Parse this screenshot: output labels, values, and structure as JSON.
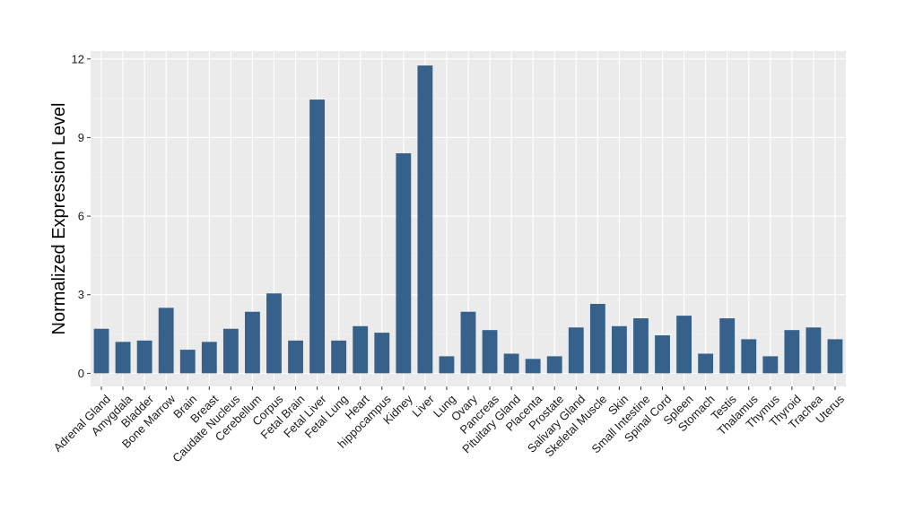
{
  "chart_data": {
    "type": "bar",
    "title": "",
    "xlabel": "",
    "ylabel": "Normalized Expression Level",
    "ylim": [
      -0.5,
      12.3
    ],
    "yticks": [
      0,
      3,
      6,
      9,
      12
    ],
    "grid": true,
    "legend": "none",
    "bar_color": "#36618b",
    "panel_background": "#ebebeb",
    "categories": [
      "Adrenal Gland",
      "Amygdala",
      "Bladder",
      "Bone Marrow",
      "Brain",
      "Breast",
      "Caudate Nucleus",
      "Cerebellum",
      "Corpus",
      "Fetal Brain",
      "Fetal Liver",
      "Fetal Lung",
      "Heart",
      "hippocampus",
      "Kidney",
      "Liver",
      "Lung",
      "Ovary",
      "Pancreas",
      "Pituitary Gland",
      "Placenta",
      "Prostate",
      "Salivary Gland",
      "Skeletal Muscle",
      "Skin",
      "Small Intestine",
      "Spinal Cord",
      "Spleen",
      "Stomach",
      "Testis",
      "Thalamus",
      "Thymus",
      "Thyroid",
      "Trachea",
      "Uterus"
    ],
    "values": [
      1.7,
      1.2,
      1.25,
      2.5,
      0.9,
      1.2,
      1.7,
      2.35,
      3.05,
      1.25,
      10.45,
      1.25,
      1.8,
      1.55,
      8.4,
      11.75,
      0.65,
      2.35,
      1.65,
      0.75,
      0.55,
      0.65,
      1.75,
      2.65,
      1.8,
      2.1,
      1.45,
      2.2,
      0.75,
      2.1,
      1.3,
      0.65,
      1.65,
      1.75,
      1.3
    ]
  }
}
